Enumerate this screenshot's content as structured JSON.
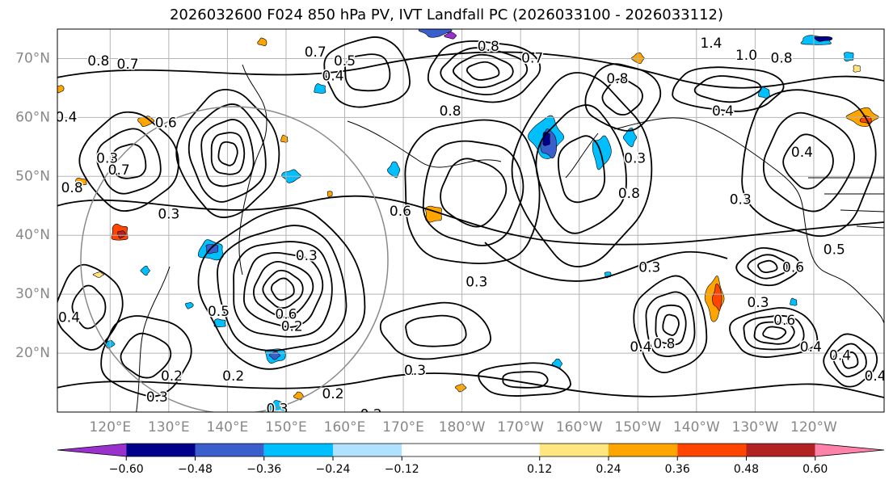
{
  "chart_data": {
    "type": "heatmap",
    "title": "2026032600 F024 850 hPa PV, IVT Landfall PC (2026033100 - 2026033112)",
    "map": {
      "lon_range_east": [
        111,
        252
      ],
      "lat_range": [
        10,
        75
      ],
      "lon_ticks": [
        120,
        130,
        140,
        150,
        160,
        170,
        180,
        190,
        200,
        210,
        220,
        230,
        240
      ],
      "lon_tick_labels": [
        "120°E",
        "130°E",
        "140°E",
        "150°E",
        "160°E",
        "170°E",
        "180°W",
        "170°W",
        "160°W",
        "150°W",
        "140°W",
        "130°W",
        "120°W"
      ],
      "lat_ticks": [
        20,
        30,
        40,
        50,
        60,
        70
      ],
      "lat_tick_labels": [
        "20°N",
        "30°N",
        "40°N",
        "50°N",
        "60°N",
        "70°N"
      ],
      "grid": true
    },
    "colorbar": {
      "ticks": [
        -0.6,
        -0.48,
        -0.36,
        -0.24,
        -0.12,
        0.12,
        0.24,
        0.36,
        0.48,
        0.6
      ],
      "tick_labels": [
        "−0.60",
        "−0.48",
        "−0.36",
        "−0.24",
        "−0.12",
        "0.12",
        "0.24",
        "0.36",
        "0.48",
        "0.60"
      ],
      "colors": [
        "#9932cc",
        "#00008b",
        "#3a5fcd",
        "#00bfff",
        "#b0e2ff",
        "#ffffff",
        "#ffe680",
        "#ffa500",
        "#ff4500",
        "#b22222",
        "#ff82ab"
      ],
      "extend": "both"
    },
    "contour_labels": [
      {
        "text": "0.7",
        "lon": 155,
        "lat": 71
      },
      {
        "text": "0.5",
        "lon": 160,
        "lat": 69.5
      },
      {
        "text": "0.4",
        "lon": 158,
        "lat": 67
      },
      {
        "text": "0.8",
        "lon": 184.5,
        "lat": 72
      },
      {
        "text": "0.7",
        "lon": 192,
        "lat": 70
      },
      {
        "text": "0.8",
        "lon": 206.5,
        "lat": 66.5
      },
      {
        "text": "1.4",
        "lon": 222.5,
        "lat": 72.5
      },
      {
        "text": "1.0",
        "lon": 228.5,
        "lat": 70.5
      },
      {
        "text": "0.8",
        "lon": 234.5,
        "lat": 70
      },
      {
        "text": "0.8",
        "lon": 118,
        "lat": 69.5
      },
      {
        "text": "0.7",
        "lon": 123,
        "lat": 69
      },
      {
        "text": "0.4",
        "lon": 112.5,
        "lat": 60
      },
      {
        "text": "0.6",
        "lon": 129.5,
        "lat": 59
      },
      {
        "text": "0.3",
        "lon": 119.5,
        "lat": 53
      },
      {
        "text": "0.7",
        "lon": 121.5,
        "lat": 51
      },
      {
        "text": "0.3",
        "lon": 130,
        "lat": 43.5
      },
      {
        "text": "0.8",
        "lon": 113.5,
        "lat": 48
      },
      {
        "text": "0.3",
        "lon": 153.5,
        "lat": 36.5
      },
      {
        "text": "0.6",
        "lon": 150,
        "lat": 26.5
      },
      {
        "text": "0.5",
        "lon": 138.5,
        "lat": 27
      },
      {
        "text": "0.2",
        "lon": 151,
        "lat": 24.5
      },
      {
        "text": "0.2",
        "lon": 130.5,
        "lat": 16
      },
      {
        "text": "0.2",
        "lon": 141,
        "lat": 16
      },
      {
        "text": "0.3",
        "lon": 128,
        "lat": 12.5
      },
      {
        "text": "0.3",
        "lon": 148.5,
        "lat": 10.5
      },
      {
        "text": "0.2",
        "lon": 158,
        "lat": 13
      },
      {
        "text": "0.2",
        "lon": 164.5,
        "lat": 9.5
      },
      {
        "text": "0.3",
        "lon": 172,
        "lat": 17
      },
      {
        "text": "0.3",
        "lon": 182.5,
        "lat": 32
      },
      {
        "text": "0.8",
        "lon": 178,
        "lat": 61
      },
      {
        "text": "0.6",
        "lon": 169.5,
        "lat": 44
      },
      {
        "text": "0.3",
        "lon": 209.5,
        "lat": 53
      },
      {
        "text": "0.8",
        "lon": 208.5,
        "lat": 47
      },
      {
        "text": "0.4",
        "lon": 224.5,
        "lat": 61
      },
      {
        "text": "0.4",
        "lon": 238,
        "lat": 54
      },
      {
        "text": "0.3",
        "lon": 227.5,
        "lat": 46
      },
      {
        "text": "0.3",
        "lon": 212,
        "lat": 34.5
      },
      {
        "text": "0.5",
        "lon": 243.5,
        "lat": 37.5
      },
      {
        "text": "0.6",
        "lon": 236.5,
        "lat": 34.5
      },
      {
        "text": "0.3",
        "lon": 230.5,
        "lat": 28.5
      },
      {
        "text": "0.6",
        "lon": 235,
        "lat": 25.5
      },
      {
        "text": "0.4",
        "lon": 239.5,
        "lat": 21
      },
      {
        "text": "0.4",
        "lon": 210.5,
        "lat": 21
      },
      {
        "text": "0.8",
        "lon": 214.5,
        "lat": 21.5
      },
      {
        "text": "0.4",
        "lon": 244.5,
        "lat": 19.5
      },
      {
        "text": "0.4",
        "lon": 250.5,
        "lat": 16
      },
      {
        "text": "0.4",
        "lon": 113,
        "lat": 26
      }
    ]
  }
}
